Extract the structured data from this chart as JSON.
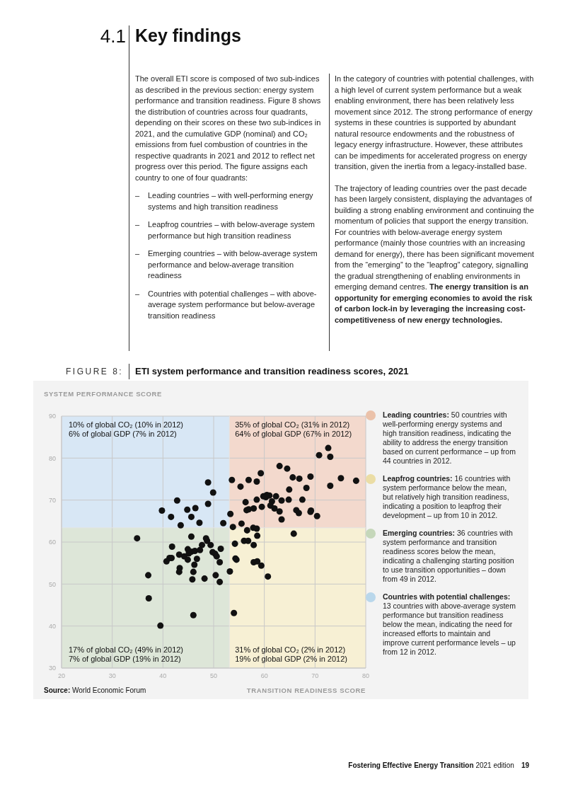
{
  "chart_data": {
    "type": "scatter",
    "title": "ETI system performance and transition readiness scores, 2021",
    "xlabel": "TRANSITION READINESS SCORE",
    "ylabel": "SYSTEM PERFORMANCE SCORE",
    "color": "#111111",
    "marker": "circle",
    "grid": true,
    "xlim": [
      20,
      80
    ],
    "ylim": [
      30,
      90
    ],
    "xticks": [
      20,
      30,
      40,
      50,
      60,
      70,
      80
    ],
    "yticks": [
      30,
      40,
      50,
      60,
      70,
      80,
      90
    ],
    "ref_lines": [
      {
        "axis": "x",
        "value": 53.1
      },
      {
        "axis": "y",
        "value": 63.4
      }
    ],
    "x": [
      48.9,
      49.9,
      42.8,
      48.9,
      39.8,
      44.8,
      46.4,
      41.6,
      45.6,
      43.5,
      47.2,
      51.9,
      72.6,
      70.8,
      73.0,
      63.0,
      64.5,
      59.3,
      65.6,
      66.9,
      69.1,
      75.1,
      78.1,
      53.6,
      56.9,
      58.5,
      55.3,
      73.0,
      64.9,
      68.3,
      59.8,
      60.5,
      61.0,
      60.3,
      62.3,
      58.5,
      63.4,
      64.8,
      67.5,
      61.5,
      56.3,
      61.2,
      59.5,
      62.0,
      57.9,
      56.9,
      56.5,
      63.0,
      66.3,
      66.8,
      69.1,
      69.2,
      63.4,
      70.4,
      53.3,
      53.8,
      55.5,
      56.6,
      57.8,
      58.5,
      58.6,
      65.8,
      56.0,
      56.8,
      54.2,
      57.9,
      51.4,
      34.9,
      45.6,
      48.5,
      48.7,
      41.8,
      44.9,
      47.7,
      49.4,
      45.6,
      46.3,
      47.3,
      45.1,
      49.8,
      50.3,
      50.6,
      43.2,
      44.2,
      44.9,
      46.7,
      41.3,
      41.7,
      40.7,
      51.2,
      46.2,
      43.3,
      43.2,
      46.0,
      37.1,
      50.4,
      45.8,
      48.2,
      51.2,
      37.2,
      46.0,
      39.5,
      54.3,
      54.5,
      57.9,
      58.6,
      59.4,
      53.2,
      60.7,
      54.0
    ],
    "values": [
      74.2,
      71.8,
      69.9,
      69.1,
      67.5,
      67.7,
      68.1,
      66.0,
      66.0,
      64.0,
      64.6,
      64.5,
      82.4,
      80.7,
      80.3,
      78.1,
      77.5,
      76.4,
      75.4,
      75.1,
      75.6,
      75.2,
      74.6,
      74.8,
      74.8,
      74.4,
      73.2,
      73.4,
      72.5,
      72.9,
      70.9,
      71.2,
      71.1,
      70.7,
      70.9,
      70.1,
      69.9,
      70.1,
      70.1,
      69.7,
      69.5,
      68.7,
      68.4,
      68.0,
      68.0,
      67.8,
      67.6,
      67.3,
      67.6,
      66.9,
      67.2,
      67.5,
      65.4,
      66.2,
      66.7,
      63.6,
      64.4,
      62.8,
      63.4,
      63.2,
      61.5,
      62.0,
      60.3,
      60.3,
      59.6,
      59.3,
      58.4,
      60.9,
      61.3,
      60.9,
      60.3,
      58.9,
      58.3,
      59.3,
      59.3,
      57.7,
      57.9,
      58.1,
      57.3,
      57.6,
      57.2,
      56.6,
      57.0,
      56.6,
      55.8,
      56.0,
      56.2,
      56.2,
      55.4,
      55.2,
      54.6,
      53.8,
      52.9,
      52.9,
      52.1,
      52.1,
      51.1,
      51.3,
      50.5,
      46.6,
      42.6,
      40.1,
      56.1,
      55.8,
      55.2,
      55.4,
      54.4,
      53.0,
      51.8,
      43.1
    ],
    "annotations": [
      "4.1",
      "Key findings",
      "The overall ETI score is composed of two sub-indices as described in the previous section: energy system performance and transition readiness. Figure 8 shows the distribution of countries across four quadrants, depending on their scores on these two sub-indices in 2021, and the cumulative GDP (nominal) and CO₂ emissions from fuel combustion of countries in the respective quadrants in 2021 and 2012 to reflect net progress over this period. The figure assigns each country to one of four quadrants:",
      "–",
      "Leading countries – with well-performing energy systems and high transition readiness",
      "–",
      "Leapfrog countries – with below-average system performance but high transition readiness",
      "–",
      "Emerging countries – with below-average system performance and below-average transition readiness",
      "–",
      "Countries with potential challenges – with above-average system performance but below-average transition readiness",
      "In the category of countries with potential challenges, with a high level of current system performance but a weak enabling environment, there has been relatively less movement since 2012. The strong performance of energy systems in these countries is supported by abundant natural resource endowments and the robustness of legacy energy infrastructure. However, these attributes can be impediments for accelerated progress on energy transition, given the inertia from a legacy-installed base.",
      "The trajectory of leading countries over the past decade has been largely consistent, displaying the advantages of building a strong enabling environment and continuing the momentum of policies that support the energy transition. For countries with below-average energy system performance (mainly those countries with an increasing demand for energy), there has been significant movement from the “emerging” to the “leapfrog” category, signalling the gradual strengthening of enabling environments in emerging demand centres.",
      "The energy transition is an opportunity for emerging economies to avoid the risk of carbon lock-in by leveraging the increasing cost-competitiveness of new energy technologies.",
      "FIGURE 8:",
      "35% of global CO₂ (31% in 2012)",
      "64% of global GDP (67% in 2012)",
      "31% of global CO₂ (2% in 2012)",
      "19% of global GDP (2% in 2012)",
      "17% of global CO₂ (49% in 2012)",
      "7% of global GDP (19% in 2012)",
      "10% of global CO₂ (10% in 2012)",
      "6% of global GDP (7% in 2012)",
      "Leading countries:",
      "50 countries with well-performing energy systems and high transition readiness, indicating the ability to address the energy transition based on current performance – up from 44 countries in 2012.",
      "Leapfrog countries:",
      "16 countries with system performance below the mean, but relatively high transition readiness, indicating a position to leapfrog their development – up from 10 in 2012.",
      "Emerging countries:",
      "36 countries with system performance and transition readiness scores below the mean, indicating a challenging starting position to use transition opportunities – down from 49 in 2012.",
      "Countries with potential challenges:",
      "13 countries with above-average system performance but transition readiness below the mean, indicating the need for increased efforts to maintain and improve current performance levels – up from 12 in 2012.",
      "Source:",
      "World Economic Forum",
      "Fostering Effective Energy Transition",
      "2021 edition",
      "19"
    ]
  }
}
